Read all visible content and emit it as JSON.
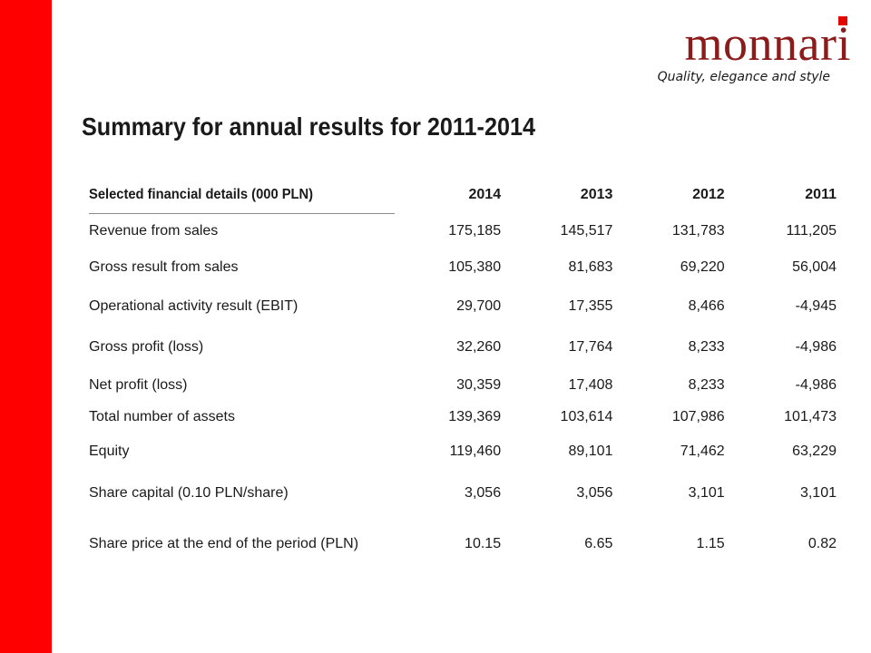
{
  "brand": {
    "logo_text": "monnari",
    "tagline": "Quality, elegance and style",
    "accent_color": "#ff0000",
    "logo_color": "#8c1b1b"
  },
  "title": "Summary for annual results for 2011-2014",
  "table": {
    "header": [
      "Selected financial details (000 PLN)",
      "2014",
      "2013",
      "2012",
      "2011"
    ],
    "rows": [
      {
        "label": "Revenue from sales",
        "values": [
          "175,185",
          "145,517",
          "131,783",
          "111,205"
        ]
      },
      {
        "label": "Gross result from sales",
        "values": [
          "105,380",
          "81,683",
          "69,220",
          "56,004"
        ]
      },
      {
        "label": "Operational activity result (EBIT)",
        "values": [
          "29,700",
          "17,355",
          "8,466",
          "-4,945"
        ]
      },
      {
        "label": "Gross profit (loss)",
        "values": [
          "32,260",
          "17,764",
          "8,233",
          "-4,986"
        ]
      },
      {
        "label": "Net profit (loss)",
        "values": [
          "30,359",
          "17,408",
          "8,233",
          "-4,986"
        ]
      },
      {
        "label": "Total number of assets",
        "values": [
          "139,369",
          "103,614",
          "107,986",
          "101,473"
        ]
      },
      {
        "label": "Equity",
        "values": [
          "119,460",
          "89,101",
          "71,462",
          "63,229"
        ]
      },
      {
        "label": "Share capital (0.10 PLN/share)",
        "values": [
          "3,056",
          "3,056",
          "3,101",
          "3,101"
        ]
      },
      {
        "label": "Share price at the end of the period (PLN)",
        "values": [
          "10.15",
          "6.65",
          "1.15",
          "0.82"
        ]
      }
    ]
  }
}
